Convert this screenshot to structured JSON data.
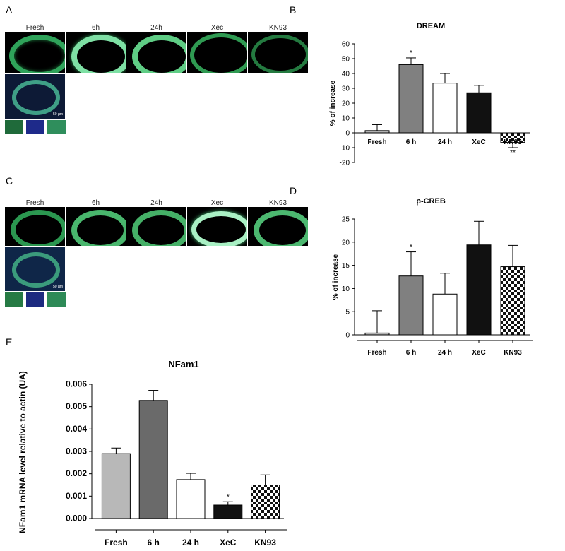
{
  "panel_letters": [
    "A",
    "B",
    "C",
    "D",
    "E"
  ],
  "image_rows": {
    "A": {
      "labels": [
        "Fresh",
        "6h",
        "24h",
        "Xec",
        "KN93"
      ],
      "scale_bar_text": "50 µm"
    },
    "C": {
      "labels": [
        "Fresh",
        "6h",
        "24h",
        "Xec",
        "KN93"
      ],
      "scale_bar_text": "50 µm"
    }
  },
  "chart_data": [
    {
      "id": "B",
      "type": "bar",
      "title": "DREAM",
      "xlabel": "",
      "ylabel": "% of increase",
      "categories": [
        "Fresh",
        "6 h",
        "24 h",
        "XeC",
        "KN93"
      ],
      "values": [
        1.5,
        46,
        33.5,
        27,
        -6.5
      ],
      "errors": [
        4,
        4.5,
        6.5,
        5,
        3.5
      ],
      "annotations": [
        "",
        "*",
        "",
        "",
        "**"
      ],
      "ylim": [
        -20,
        60
      ],
      "yticks": [
        -20,
        -10,
        0,
        10,
        20,
        30,
        40,
        50,
        60
      ],
      "fills": [
        "#b0b0b0",
        "#808080",
        "#ffffff",
        "#111111",
        "checker"
      ]
    },
    {
      "id": "D",
      "type": "bar",
      "title": "p-CREB",
      "xlabel": "",
      "ylabel": "% of increase",
      "categories": [
        "Fresh",
        "6 h",
        "24 h",
        "XeC",
        "KN93"
      ],
      "values": [
        0.4,
        12.7,
        8.8,
        19.4,
        14.7
      ],
      "errors": [
        4.8,
        5.2,
        4.5,
        5.1,
        4.6
      ],
      "annotations": [
        "",
        "*",
        "",
        "",
        ""
      ],
      "ylim": [
        0,
        25
      ],
      "yticks": [
        0,
        5,
        10,
        15,
        20,
        25
      ],
      "fills": [
        "#b0b0b0",
        "#808080",
        "#ffffff",
        "#111111",
        "checker"
      ]
    },
    {
      "id": "E",
      "type": "bar",
      "title": "NFam1",
      "xlabel": "",
      "ylabel": "NFam1 mRNA level relative to actin (UA)",
      "categories": [
        "Fresh",
        "6 h",
        "24 h",
        "XeC",
        "KN93"
      ],
      "values": [
        0.0029,
        0.00528,
        0.00174,
        0.0006,
        0.0015
      ],
      "errors": [
        0.00025,
        0.00045,
        0.00028,
        0.00015,
        0.00045
      ],
      "annotations": [
        "",
        "",
        "",
        "*",
        ""
      ],
      "ylim": [
        0,
        0.006
      ],
      "yticks": [
        "0.000",
        "0.001",
        "0.002",
        "0.003",
        "0.004",
        "0.005",
        "0.006"
      ],
      "fills": [
        "#b8b8b8",
        "#6a6a6a",
        "#ffffff",
        "#111111",
        "checker"
      ]
    }
  ]
}
